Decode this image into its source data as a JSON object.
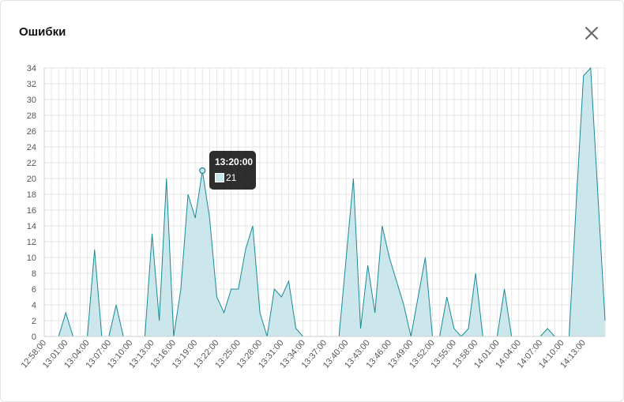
{
  "dialog": {
    "title": "Ошибки",
    "close_icon": "close-icon"
  },
  "tooltip": {
    "time": "13:20:00",
    "value": "21"
  },
  "colors": {
    "line": "#1a8a96",
    "fill": "#c8e6ea",
    "grid": "#e6e6e6"
  },
  "chart_data": {
    "type": "area",
    "title": "",
    "xlabel": "",
    "ylabel": "",
    "ylim": [
      0,
      34
    ],
    "yticks": [
      0,
      2,
      4,
      6,
      8,
      10,
      12,
      14,
      16,
      18,
      20,
      22,
      24,
      26,
      28,
      30,
      32,
      34
    ],
    "xtick_labels": [
      "12:58:00",
      "13:01:00",
      "13:04:00",
      "13:07:00",
      "13:10:00",
      "13:13:00",
      "13:16:00",
      "13:19:00",
      "13:22:00",
      "13:25:00",
      "13:28:00",
      "13:31:00",
      "13:34:00",
      "13:37:00",
      "13:40:00",
      "13:43:00",
      "13:46:00",
      "13:49:00",
      "13:52:00",
      "13:55:00",
      "13:58:00",
      "14:01:00",
      "14:04:00",
      "14:07:00",
      "14:10:00",
      "14:13:00"
    ],
    "x_start": "12:58:00",
    "x_step_minutes": 1,
    "values": [
      0,
      0,
      0,
      3,
      0,
      0,
      0,
      11,
      0,
      0,
      4,
      0,
      0,
      0,
      0,
      13,
      2,
      20,
      0,
      6,
      18,
      15,
      21,
      15,
      5,
      3,
      6,
      6,
      11,
      14,
      3,
      0,
      6,
      5,
      7,
      1,
      0,
      0,
      0,
      0,
      0,
      0,
      10,
      20,
      1,
      9,
      3,
      14,
      10,
      7,
      4,
      0,
      5,
      10,
      0,
      0,
      5,
      1,
      0,
      1,
      8,
      0,
      0,
      0,
      6,
      0,
      0,
      0,
      0,
      0,
      1,
      0,
      0,
      0,
      17,
      33,
      34,
      18,
      2
    ],
    "highlight": {
      "x": "13:20:00",
      "y": 21
    },
    "grid": true,
    "legend": "none"
  }
}
